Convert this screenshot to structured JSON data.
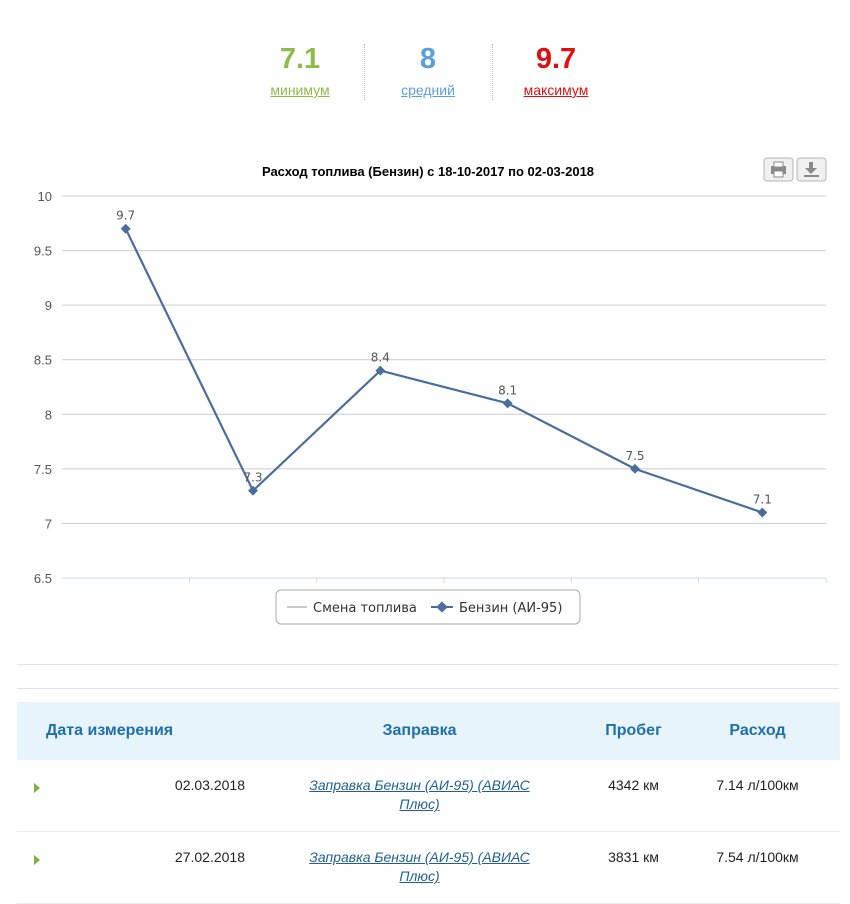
{
  "stats": {
    "min": {
      "value": "7.1",
      "label": "минимум",
      "color": "#8dbb4a"
    },
    "avg": {
      "value": "8",
      "label": "средний",
      "color": "#5aa0d8"
    },
    "max": {
      "value": "9.7",
      "label": "максимум",
      "color": "#e0100e"
    }
  },
  "chart_data": {
    "type": "line",
    "title": "Расход топлива (Бензин) с 18-10-2017 по 02-03-2018",
    "ylim": [
      6.5,
      10
    ],
    "yticks": [
      "10",
      "9.5",
      "9",
      "8.5",
      "8",
      "7.5",
      "7",
      "6.5"
    ],
    "grid": true,
    "legend_position": "bottom-center",
    "series": [
      {
        "name": "Смена топлива",
        "color": "#c8c8c8",
        "values": []
      },
      {
        "name": "Бензин (АИ-95)",
        "color": "#4a6e9b",
        "values": [
          9.7,
          7.3,
          8.4,
          8.1,
          7.5,
          7.1
        ],
        "labels": [
          "9.7",
          "7.3",
          "8.4",
          "8.1",
          "7.5",
          "7.1"
        ]
      }
    ],
    "toolbar": {
      "print_icon": "print-icon",
      "download_icon": "download-icon"
    }
  },
  "table": {
    "headers": {
      "date": "Дата измерения",
      "station": "Заправка",
      "mileage": "Пробег",
      "consumption": "Расход"
    },
    "rows": [
      {
        "date": "02.03.2018",
        "station": "Заправка Бензин (АИ-95) (АВИАС Плюс)",
        "mileage": "4342 км",
        "consumption": "7.14 л/100км"
      },
      {
        "date": "27.02.2018",
        "station": "Заправка Бензин (АИ-95) (АВИАС Плюс)",
        "mileage": "3831 км",
        "consumption": "7.54 л/100км"
      }
    ],
    "row_icon": "expand-arrow-icon"
  }
}
